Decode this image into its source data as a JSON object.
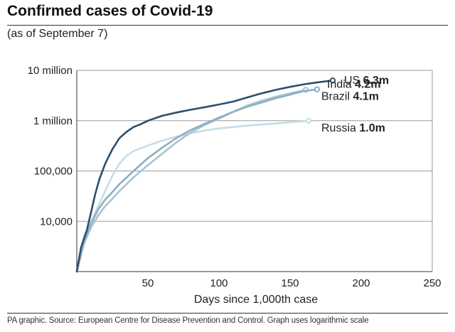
{
  "title": "Confirmed cases of Covid-19",
  "subtitle": "(as of September 7)",
  "source": "PA graphic. Source: European Centre for Disease Prevention and Control. Graph uses logarithmic scale",
  "chart_data": {
    "type": "line",
    "title": "Confirmed cases of Covid-19",
    "subtitle": "(as of September 7)",
    "xlabel": "Days since 1,000th case",
    "ylabel": "",
    "xlim": [
      0,
      250
    ],
    "ylim": [
      1000,
      10000000
    ],
    "yscale": "log",
    "xticks": [
      50,
      100,
      150,
      200,
      250
    ],
    "yticks": [
      {
        "value": 10000,
        "label": "10,000"
      },
      {
        "value": 100000,
        "label": "100,000"
      },
      {
        "value": 1000000,
        "label": "1 million"
      },
      {
        "value": 10000000,
        "label": "10 million"
      }
    ],
    "grid": "horizontal",
    "series": [
      {
        "name": "US",
        "value_label": "6.3m",
        "color": "#2c4f6e",
        "x": [
          0,
          3,
          7,
          10,
          13,
          16,
          20,
          25,
          30,
          35,
          40,
          45,
          50,
          60,
          70,
          80,
          90,
          100,
          110,
          120,
          130,
          140,
          150,
          160,
          170,
          180
        ],
        "y": [
          1000,
          3000,
          6500,
          15000,
          35000,
          70000,
          140000,
          270000,
          450000,
          600000,
          750000,
          850000,
          1000000,
          1250000,
          1450000,
          1650000,
          1850000,
          2100000,
          2400000,
          2900000,
          3500000,
          4100000,
          4700000,
          5300000,
          5800000,
          6300000
        ]
      },
      {
        "name": "India",
        "value_label": "4.2m",
        "color": "#8eaec2",
        "x": [
          0,
          5,
          10,
          15,
          20,
          25,
          30,
          40,
          50,
          60,
          70,
          80,
          90,
          100,
          110,
          120,
          130,
          140,
          150,
          160,
          169
        ],
        "y": [
          1000,
          4000,
          9000,
          17000,
          27000,
          38000,
          55000,
          100000,
          180000,
          290000,
          450000,
          650000,
          870000,
          1150000,
          1500000,
          1900000,
          2300000,
          2800000,
          3300000,
          3900000,
          4200000
        ]
      },
      {
        "name": "Brazil",
        "value_label": "4.1m",
        "color": "#a8c3d3",
        "x": [
          0,
          5,
          10,
          15,
          20,
          25,
          30,
          40,
          50,
          60,
          70,
          80,
          90,
          100,
          110,
          120,
          130,
          140,
          150,
          161
        ],
        "y": [
          1000,
          3500,
          7500,
          13000,
          20000,
          28000,
          40000,
          75000,
          130000,
          220000,
          370000,
          580000,
          820000,
          1100000,
          1500000,
          2000000,
          2500000,
          3000000,
          3500000,
          4100000
        ]
      },
      {
        "name": "Russia",
        "value_label": "1.0m",
        "color": "#c5dde6",
        "x": [
          0,
          5,
          10,
          15,
          20,
          25,
          30,
          35,
          40,
          50,
          60,
          70,
          80,
          90,
          100,
          120,
          140,
          163
        ],
        "y": [
          1000,
          5000,
          10000,
          20000,
          40000,
          80000,
          140000,
          200000,
          250000,
          320000,
          400000,
          480000,
          560000,
          640000,
          700000,
          800000,
          880000,
          1000000
        ]
      }
    ]
  }
}
